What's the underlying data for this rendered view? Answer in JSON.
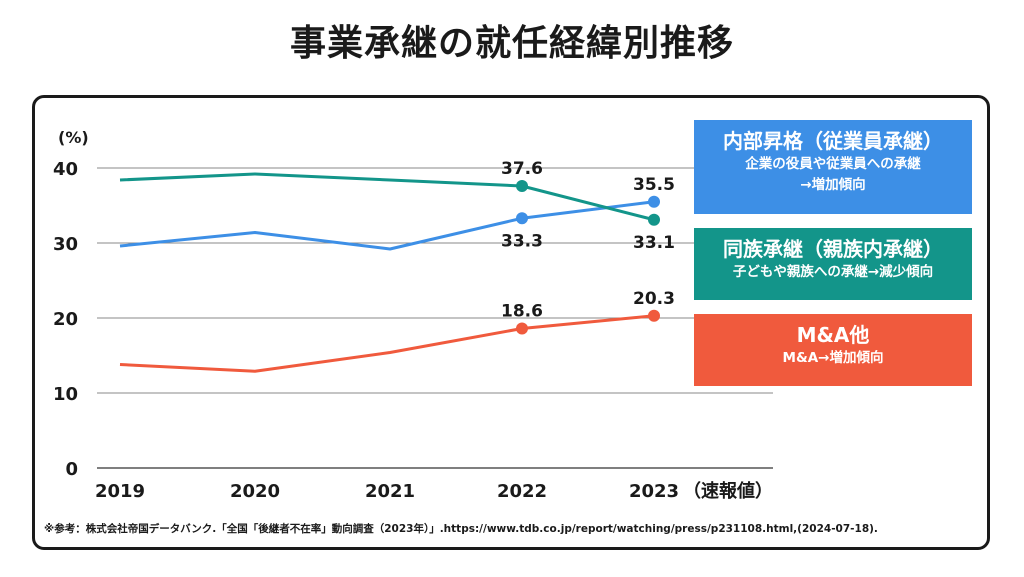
{
  "page": {
    "title": "事業承継の就任経緯別推移"
  },
  "chart_data": {
    "type": "line",
    "unit_label": "(%)",
    "x_suffix": "（速報値）",
    "categories": [
      "2019",
      "2020",
      "2021",
      "2022",
      "2023"
    ],
    "ylim": [
      0,
      40
    ],
    "yticks": [
      0,
      10,
      20,
      30,
      40
    ],
    "grid": true,
    "series": [
      {
        "name": "内部昇格（従業員承継）",
        "color": "#3d8fe6",
        "values": [
          29.6,
          31.4,
          29.2,
          33.3,
          35.5
        ],
        "labels": [
          null,
          null,
          null,
          "33.3",
          "35.5"
        ],
        "label_pos": [
          null,
          null,
          null,
          "below",
          "above"
        ]
      },
      {
        "name": "同族承継（親族内承継）",
        "color": "#13958a",
        "values": [
          38.4,
          39.2,
          38.4,
          37.6,
          33.1
        ],
        "labels": [
          null,
          null,
          null,
          "37.6",
          "33.1"
        ],
        "label_pos": [
          null,
          null,
          null,
          "above",
          "below"
        ]
      },
      {
        "name": "M&A他",
        "color": "#f05a3d",
        "values": [
          13.8,
          12.9,
          15.4,
          18.6,
          20.3
        ],
        "labels": [
          null,
          null,
          null,
          "18.6",
          "20.3"
        ],
        "label_pos": [
          null,
          null,
          null,
          "above",
          "above"
        ]
      }
    ]
  },
  "legend": [
    {
      "title": "内部昇格（従業員承継）",
      "line1": "企業の役員や従業員への承継",
      "line2": "→増加傾向",
      "color": "#3d8fe6"
    },
    {
      "title": "同族承継（親族内承継）",
      "line1": "子どもや親族への承継→減少傾向",
      "line2": "",
      "color": "#13958a"
    },
    {
      "title": "M&A他",
      "line1": "M&A→増加傾向",
      "line2": "",
      "color": "#f05a3d"
    }
  ],
  "footnote": "※参考：株式会社帝国データバンク.「全国「後継者不在率」動向調査（2023年）」.https://www.tdb.co.jp/report/watching/press/p231108.html,(2024-07-18)."
}
